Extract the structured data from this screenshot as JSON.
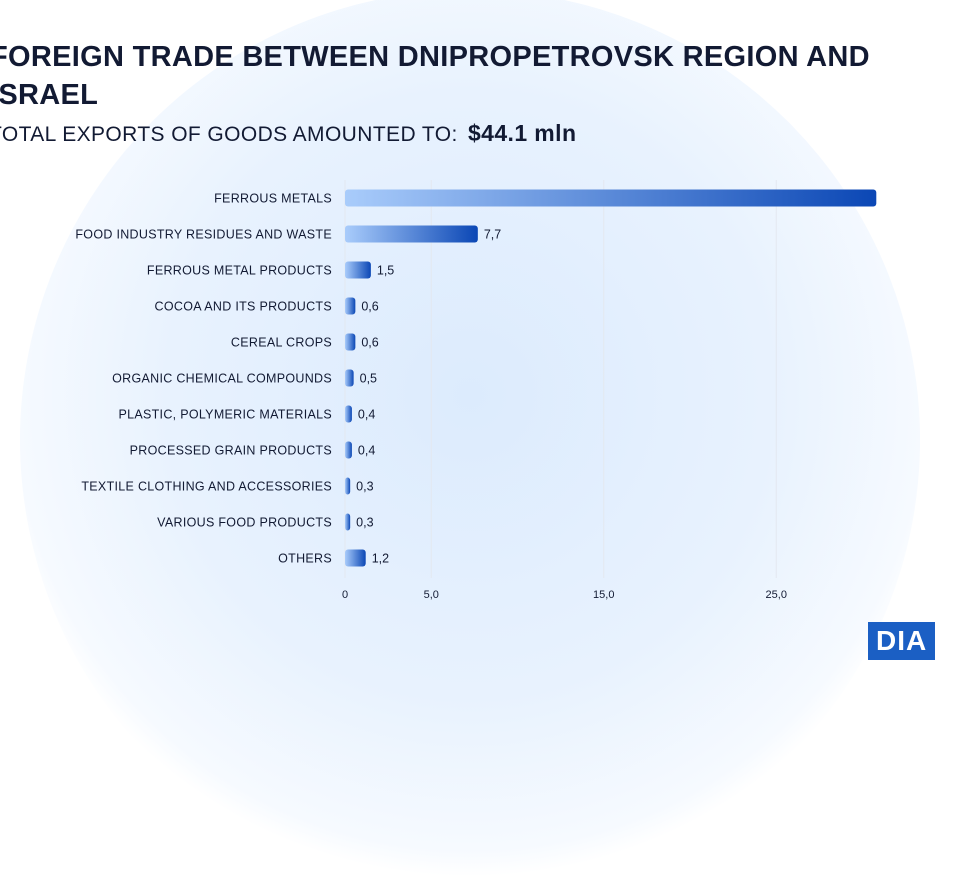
{
  "title": "FOREIGN TRADE BETWEEN DNIPROPETROVSK REGION AND ISRAEL",
  "subtitle": {
    "label": "TOTAL EXPORTS OF GOODS AMOUNTED TO:",
    "value": "$44.1 mln"
  },
  "logo": {
    "text": "DIA"
  },
  "colors": {
    "bar_start": "#a9ccfb",
    "bar_end": "#0b47b5",
    "text": "#121a33"
  },
  "chart_data": {
    "type": "bar",
    "orientation": "horizontal",
    "categories": [
      "FERROUS METALS",
      "FOOD INDUSTRY RESIDUES AND WASTE",
      "FERROUS METAL PRODUCTS",
      "COCOA AND ITS PRODUCTS",
      "CEREAL CROPS",
      "ORGANIC CHEMICAL COMPOUNDS",
      "PLASTIC, POLYMERIC MATERIALS",
      "PROCESSED GRAIN PRODUCTS",
      "TEXTILE CLOTHING AND ACCESSORIES",
      "VARIOUS FOOD PRODUCTS",
      "OTHERS"
    ],
    "values": [
      30.8,
      7.7,
      1.5,
      0.6,
      0.6,
      0.5,
      0.4,
      0.4,
      0.3,
      0.3,
      1.2
    ],
    "data_labels": [
      "",
      "7,7",
      "1,5",
      "0,6",
      "0,6",
      "0,5",
      "0,4",
      "0,4",
      "0,3",
      "0,3",
      "1,2"
    ],
    "x_ticks": [
      0,
      5,
      15,
      25
    ],
    "x_tick_labels": [
      "0",
      "5,0",
      "15,0",
      "25,0"
    ],
    "grid": true
  }
}
